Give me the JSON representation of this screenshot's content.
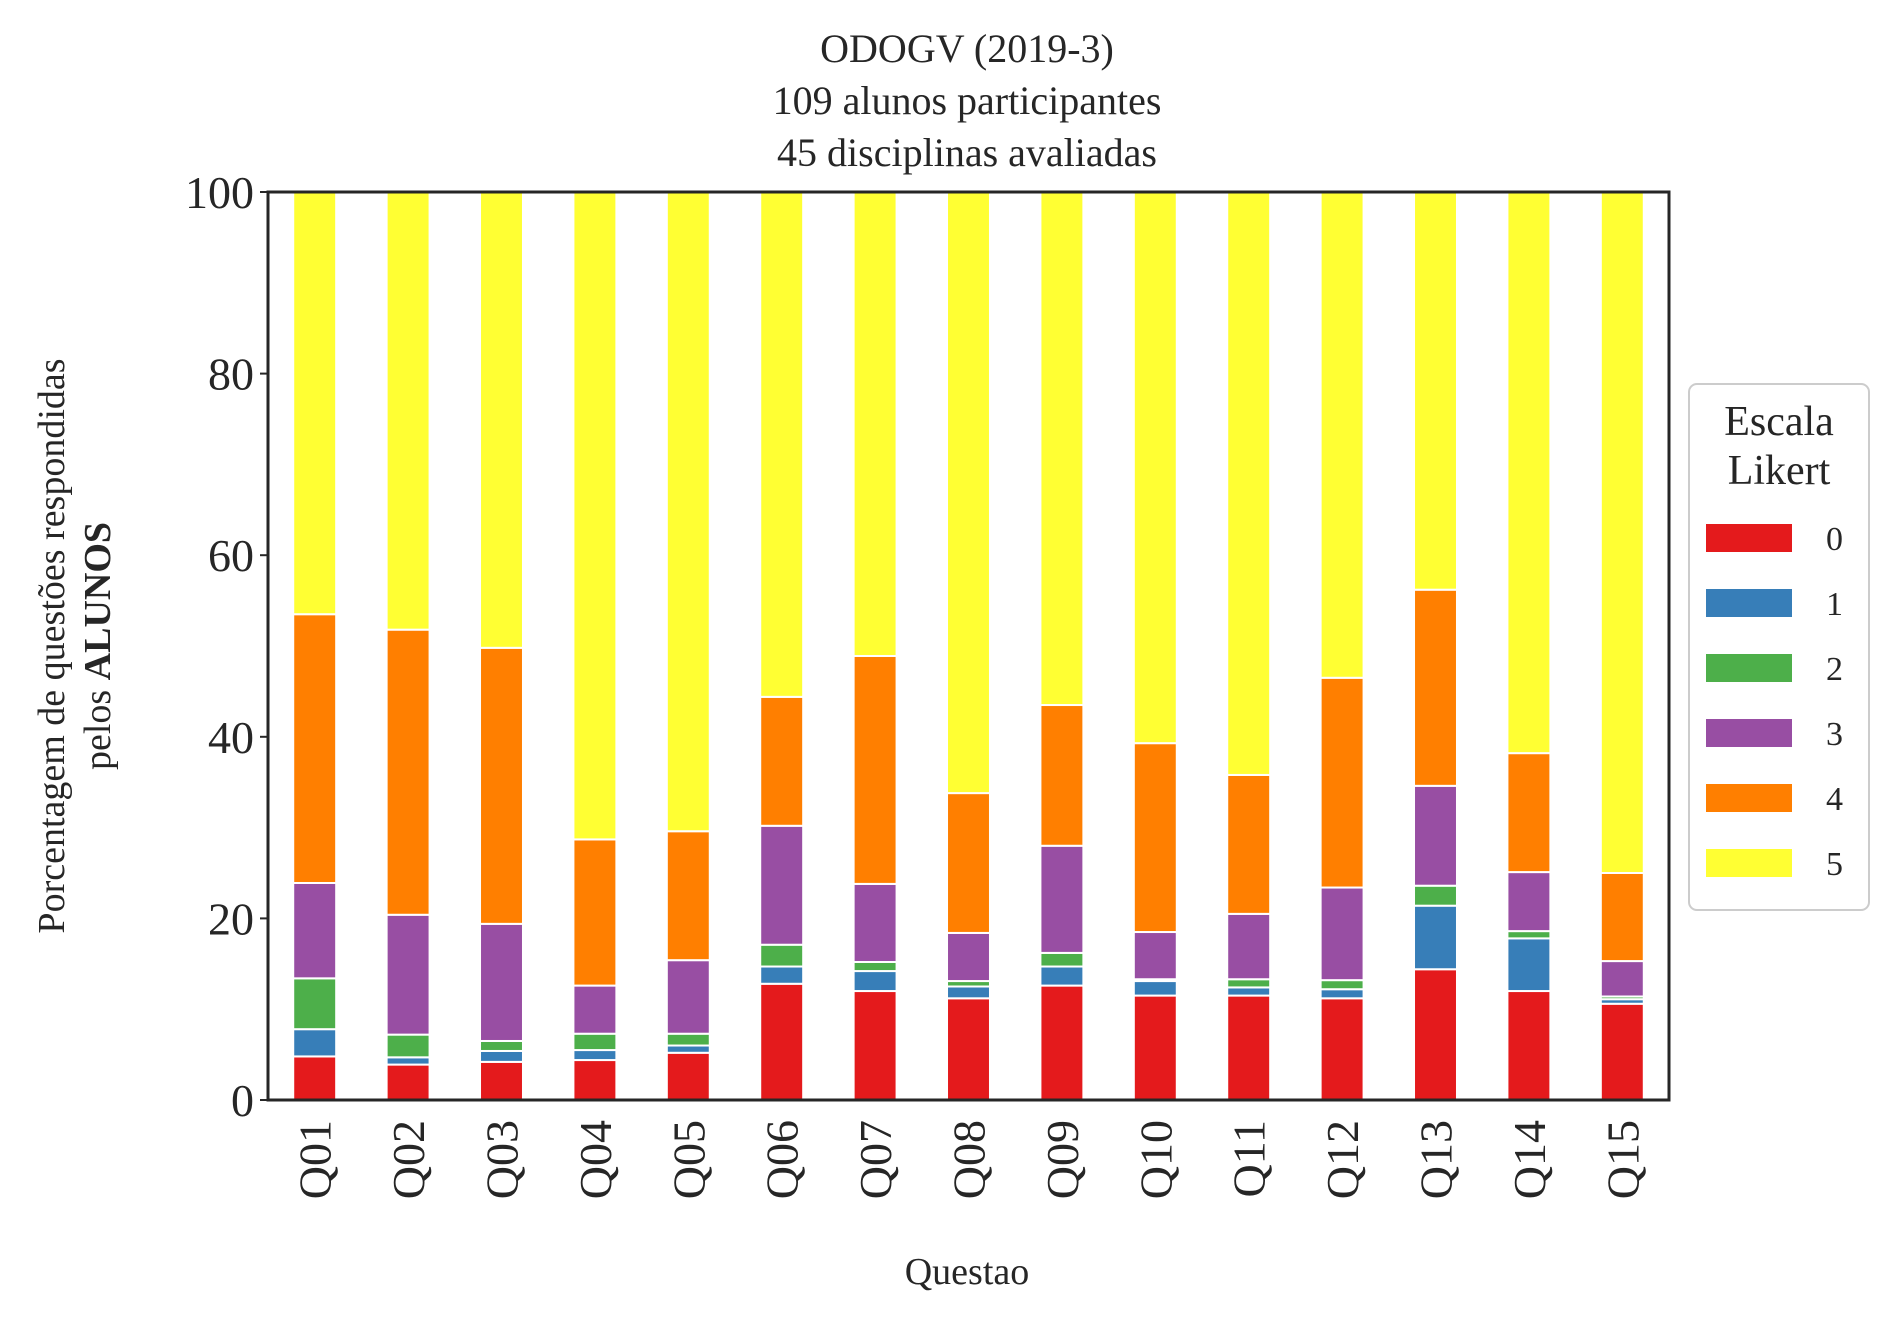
{
  "chart_data": {
    "type": "bar",
    "stacked": true,
    "title_lines": [
      "ODOGV (2019-3)",
      "109 alunos participantes",
      "45 disciplinas avaliadas"
    ],
    "xlabel": "Questao",
    "ylabel_line1": "Porcentagem de questões respondidas",
    "ylabel_line2_prefix": "pelos ",
    "ylabel_line2_bold": "ALUNOS",
    "ylim": [
      0,
      100
    ],
    "yticks": [
      0,
      20,
      40,
      60,
      80,
      100
    ],
    "grid": false,
    "legend": {
      "title_lines": [
        "Escala",
        "Likert"
      ],
      "placement": "center-right outside"
    },
    "categories": [
      "Q01",
      "Q02",
      "Q03",
      "Q04",
      "Q05",
      "Q06",
      "Q07",
      "Q08",
      "Q09",
      "Q10",
      "Q11",
      "Q12",
      "Q13",
      "Q14",
      "Q15"
    ],
    "series": [
      {
        "name": "0",
        "color": "#e41a1c",
        "values": [
          4.8,
          3.9,
          4.2,
          4.4,
          5.2,
          12.8,
          12.0,
          11.2,
          12.6,
          11.5,
          11.5,
          11.2,
          14.4,
          12.0,
          10.6
        ]
      },
      {
        "name": "1",
        "color": "#377eb8",
        "values": [
          3.0,
          0.8,
          1.2,
          1.1,
          0.8,
          1.9,
          2.2,
          1.3,
          2.1,
          1.6,
          0.9,
          1.0,
          7.0,
          5.8,
          0.5
        ]
      },
      {
        "name": "2",
        "color": "#4daf4a",
        "values": [
          5.6,
          2.5,
          1.1,
          1.8,
          1.3,
          2.4,
          1.0,
          0.6,
          1.5,
          0.2,
          0.9,
          1.0,
          2.2,
          0.8,
          0.3
        ]
      },
      {
        "name": "3",
        "color": "#984ea3",
        "values": [
          10.5,
          13.2,
          12.9,
          5.3,
          8.1,
          13.1,
          8.6,
          5.3,
          11.8,
          5.2,
          7.2,
          10.2,
          11.0,
          6.5,
          3.9
        ]
      },
      {
        "name": "4",
        "color": "#ff7f00",
        "values": [
          29.6,
          31.4,
          30.4,
          16.1,
          14.2,
          14.2,
          25.1,
          15.4,
          15.5,
          20.8,
          15.3,
          23.1,
          21.6,
          13.1,
          9.7
        ]
      },
      {
        "name": "5",
        "color": "#ffff33",
        "values": [
          46.5,
          48.2,
          50.2,
          71.3,
          70.4,
          55.6,
          51.1,
          66.2,
          56.5,
          60.7,
          64.2,
          53.5,
          43.8,
          61.8,
          75.0
        ]
      }
    ]
  }
}
